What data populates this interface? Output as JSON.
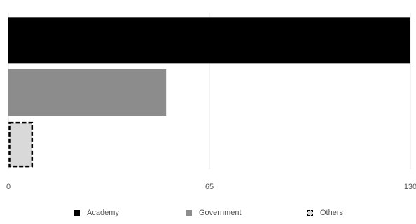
{
  "chart_data": {
    "type": "bar",
    "orientation": "horizontal",
    "categories": [
      "Academy",
      "Government",
      "Others"
    ],
    "values": [
      130,
      51,
      8
    ],
    "colors": [
      "#000000",
      "#8c8c8c",
      "#d9d9d9"
    ],
    "xlim": [
      0,
      130
    ],
    "xticks": [
      "0",
      "65",
      "130"
    ],
    "grid": true,
    "legend": {
      "placement": "bottom",
      "items": [
        {
          "label": "Academy",
          "color": "#000000"
        },
        {
          "label": "Government",
          "color": "#8c8c8c"
        },
        {
          "label": "Others",
          "color": "#d9d9d9",
          "dashed": true
        }
      ]
    }
  }
}
